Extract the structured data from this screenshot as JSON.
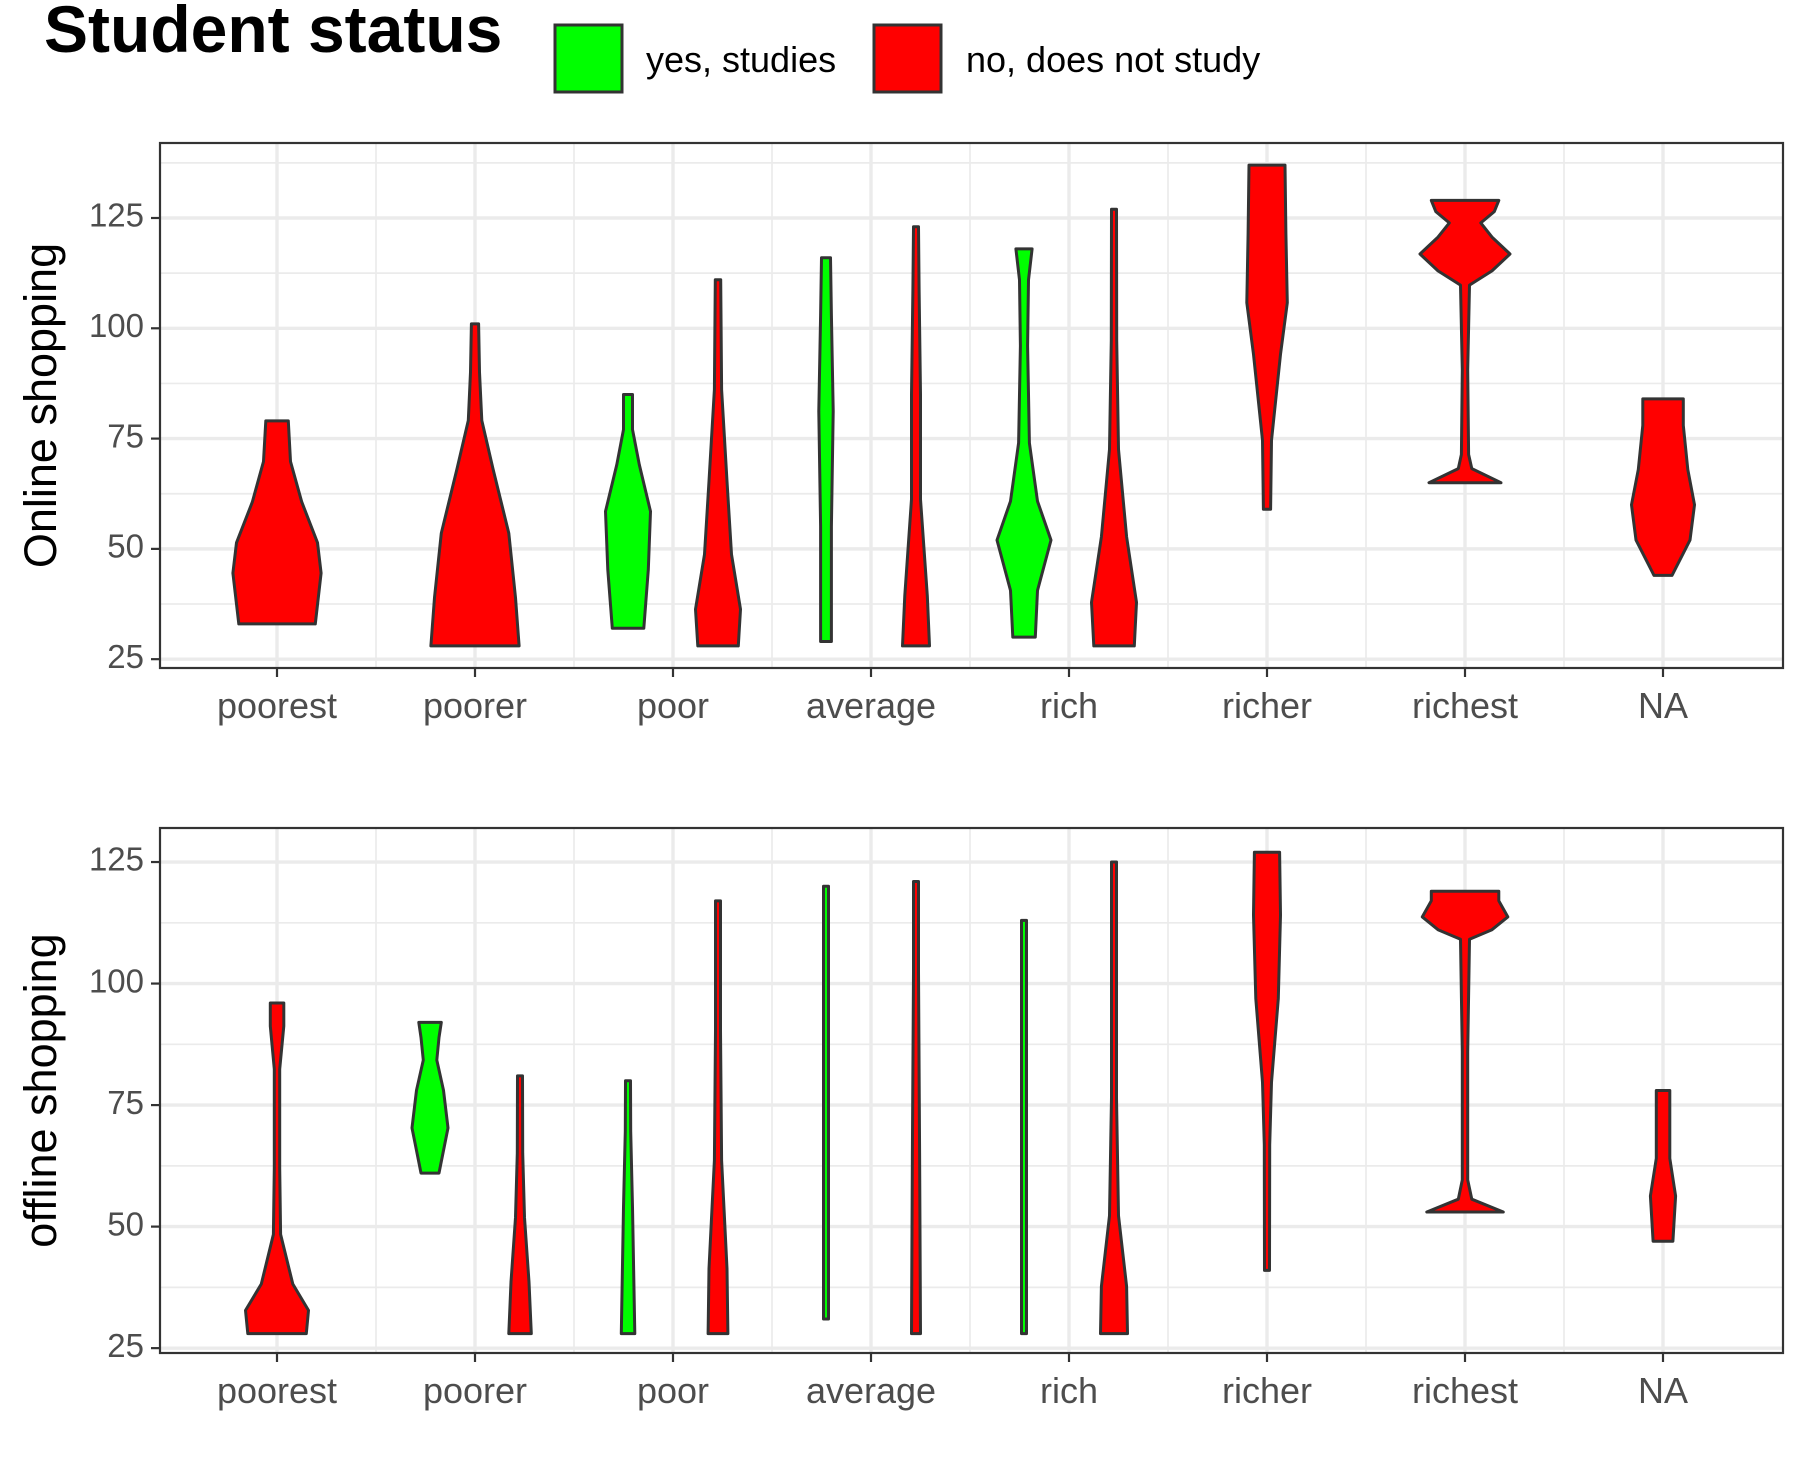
{
  "legend": {
    "title": "Student status",
    "items": [
      {
        "label": "yes, studies",
        "color": "#00FF00"
      },
      {
        "label": "no, does not study",
        "color": "#FF0000"
      }
    ]
  },
  "chart_data": [
    {
      "type": "violin",
      "ylabel": "Online shopping",
      "xlabel": "",
      "categories": [
        "poorest",
        "poorer",
        "poor",
        "average",
        "rich",
        "richer",
        "richest",
        "NA"
      ],
      "ylim": [
        23,
        142
      ],
      "yticks": [
        25,
        50,
        75,
        100,
        125
      ],
      "grid": true,
      "series": [
        {
          "name": "yes, studies",
          "color": "#00FF00",
          "violins": [
            {
              "category": "poor",
              "min": 32,
              "max": 85
            },
            {
              "category": "average",
              "min": 29,
              "max": 116
            },
            {
              "category": "rich",
              "min": 30,
              "max": 118
            }
          ]
        },
        {
          "name": "no, does not study",
          "color": "#FF0000",
          "violins": [
            {
              "category": "poorest",
              "min": 33,
              "max": 79
            },
            {
              "category": "poorer",
              "min": 28,
              "max": 101
            },
            {
              "category": "poor",
              "min": 28,
              "max": 111
            },
            {
              "category": "average",
              "min": 28,
              "max": 123
            },
            {
              "category": "rich",
              "min": 28,
              "max": 127
            },
            {
              "category": "richer",
              "min": 59,
              "max": 137
            },
            {
              "category": "richest",
              "min": 65,
              "max": 129
            },
            {
              "category": "NA",
              "min": 44,
              "max": 84
            }
          ]
        }
      ]
    },
    {
      "type": "violin",
      "ylabel": "offline shopping",
      "xlabel": "",
      "categories": [
        "poorest",
        "poorer",
        "poor",
        "average",
        "rich",
        "richer",
        "richest",
        "NA"
      ],
      "ylim": [
        24,
        132
      ],
      "yticks": [
        25,
        50,
        75,
        100,
        125
      ],
      "grid": true,
      "series": [
        {
          "name": "yes, studies",
          "color": "#00FF00",
          "violins": [
            {
              "category": "poorer",
              "min": 61,
              "max": 92
            },
            {
              "category": "poor",
              "min": 28,
              "max": 80
            },
            {
              "category": "average",
              "min": 31,
              "max": 120
            },
            {
              "category": "rich",
              "min": 28,
              "max": 113
            }
          ]
        },
        {
          "name": "no, does not study",
          "color": "#FF0000",
          "violins": [
            {
              "category": "poorest",
              "min": 28,
              "max": 96
            },
            {
              "category": "poorer",
              "min": 28,
              "max": 81
            },
            {
              "category": "poor",
              "min": 28,
              "max": 117
            },
            {
              "category": "average",
              "min": 28,
              "max": 121
            },
            {
              "category": "rich",
              "min": 28,
              "max": 125
            },
            {
              "category": "richer",
              "min": 41,
              "max": 127
            },
            {
              "category": "richest",
              "min": 53,
              "max": 119
            },
            {
              "category": "NA",
              "min": 47,
              "max": 78
            }
          ]
        }
      ]
    }
  ]
}
